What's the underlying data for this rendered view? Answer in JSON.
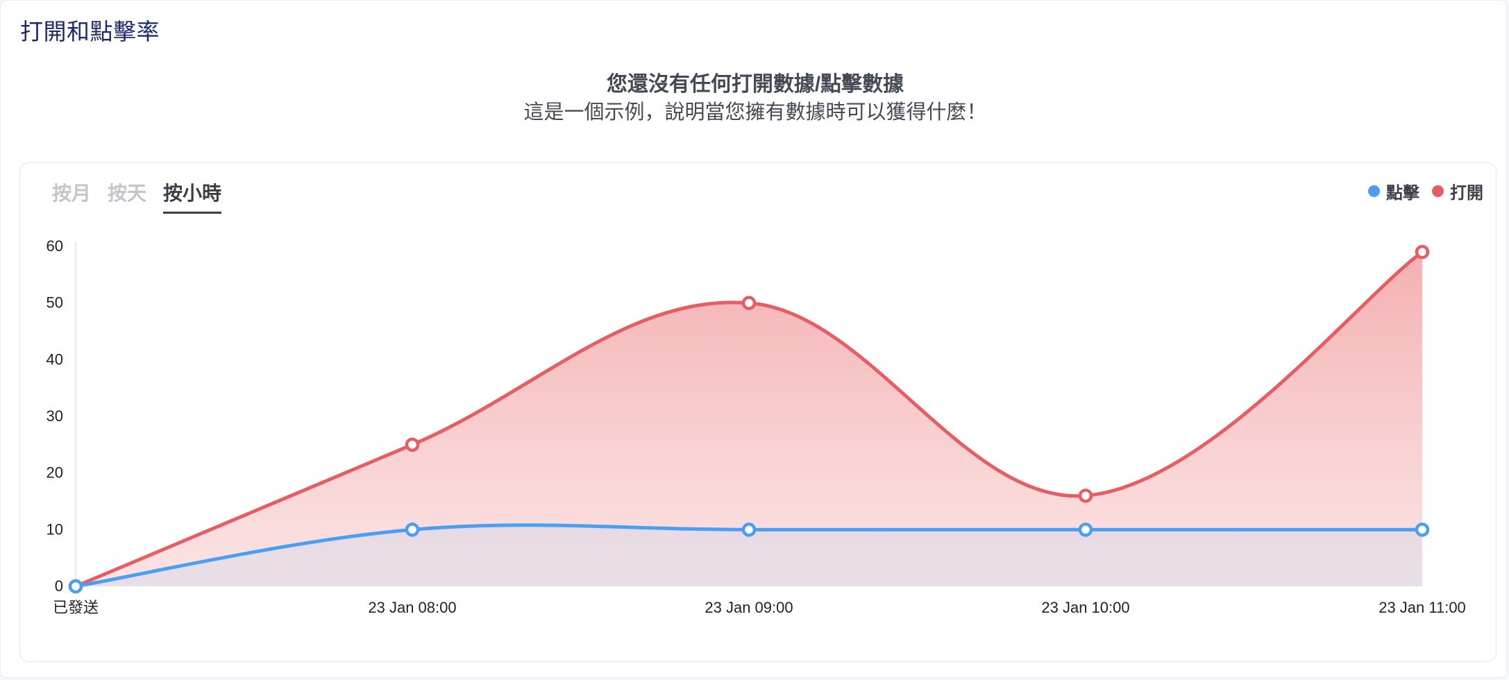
{
  "panel": {
    "title": "打開和點擊率"
  },
  "empty_state": {
    "heading": "您還沒有任何打開數據/點擊數據",
    "subheading": "這是一個示例，說明當您擁有數據時可以獲得什麼！"
  },
  "tabs": [
    {
      "label": "按月",
      "active": false
    },
    {
      "label": "按天",
      "active": false
    },
    {
      "label": "按小時",
      "active": true
    }
  ],
  "legend": [
    {
      "label": "點擊",
      "color": "#4a9ff5"
    },
    {
      "label": "打開",
      "color": "#e85d61"
    }
  ],
  "chart_data": {
    "type": "area",
    "categories": [
      "已發送",
      "23 Jan 08:00",
      "23 Jan 09:00",
      "23 Jan 10:00",
      "23 Jan 11:00"
    ],
    "series": [
      {
        "name": "打開",
        "values": [
          0,
          25,
          50,
          16,
          59
        ],
        "color": "#e85d61"
      },
      {
        "name": "點擊",
        "values": [
          0,
          10,
          10,
          10,
          10
        ],
        "color": "#4a9ff5"
      }
    ],
    "yticks": [
      0,
      10,
      20,
      30,
      40,
      50,
      60
    ],
    "ylim": [
      0,
      60
    ],
    "grid": false,
    "legend_position": "top-right"
  }
}
